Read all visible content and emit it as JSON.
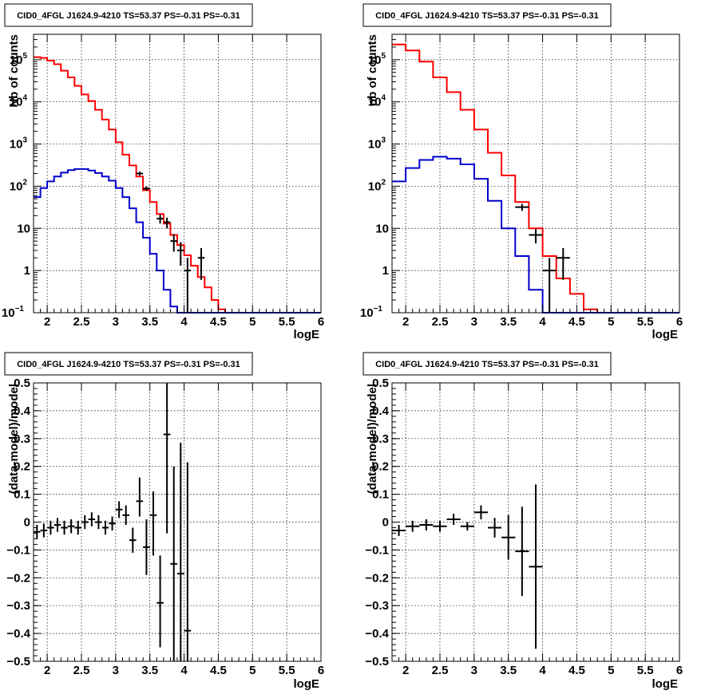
{
  "colors": {
    "data": "#000000",
    "total_model": "#ff0000",
    "source_model": "#0000cc",
    "grid": "#000000"
  },
  "chart_data": [
    {
      "id": "counts-fine",
      "type": "line",
      "title": "CID0_4FGL J1624.9-4210 TS=53.37 PS=-0.31 PS=-0.31",
      "xlabel": "logE",
      "ylabel": "Nb of counts",
      "xlim": [
        1.8,
        6.0
      ],
      "ylim": [
        0.1,
        400000
      ],
      "yscale": "log",
      "grid": true,
      "xticks": [
        "2",
        "2.5",
        "3",
        "3.5",
        "4",
        "4.5",
        "5",
        "5.5",
        "6"
      ],
      "yticks": [
        {
          "value": 0.1,
          "base": "10",
          "exp": "−1"
        },
        {
          "value": 1,
          "base": "1",
          "exp": ""
        },
        {
          "value": 10,
          "base": "10",
          "exp": ""
        },
        {
          "value": 100,
          "base": "10",
          "exp": "2"
        },
        {
          "value": 1000,
          "base": "10",
          "exp": "3"
        },
        {
          "value": 10000,
          "base": "10",
          "exp": "4"
        },
        {
          "value": 100000,
          "base": "10",
          "exp": "5"
        }
      ],
      "bin_edges": [
        1.8,
        1.9,
        2.0,
        2.1,
        2.2,
        2.3,
        2.4,
        2.5,
        2.6,
        2.7,
        2.8,
        2.9,
        3.0,
        3.1,
        3.2,
        3.3,
        3.4,
        3.5,
        3.6,
        3.7,
        3.8,
        3.9,
        4.0,
        4.1,
        4.2,
        4.3,
        4.4,
        4.5,
        4.6,
        4.7,
        4.8,
        4.9,
        5.0,
        5.1,
        5.2,
        5.3,
        5.4,
        5.5,
        5.6,
        5.7,
        5.8,
        5.9,
        6.0
      ],
      "series": [
        {
          "name": "total model",
          "color": "#ff0000",
          "values": [
            115000,
            110000,
            95000,
            78000,
            55000,
            38000,
            24000,
            15000,
            10500,
            6500,
            3800,
            2200,
            1100,
            560,
            310,
            170,
            80,
            42,
            22,
            13,
            7,
            4,
            2.3,
            1.3,
            0.7,
            0.4,
            0.2,
            0.12,
            0.08,
            0.08,
            0.08,
            0.08,
            0.08,
            0.08,
            0.08,
            0.08,
            0.08,
            0.08,
            0.08,
            0.08,
            0.08,
            0.08
          ]
        },
        {
          "name": "source model",
          "color": "#0000cc",
          "values": [
            55,
            90,
            130,
            170,
            210,
            240,
            255,
            255,
            235,
            205,
            170,
            135,
            90,
            55,
            30,
            14,
            6,
            2.5,
            1.0,
            0.35,
            0.14,
            0.08,
            0.08,
            0.08,
            0.08,
            0.08,
            0.08,
            0.08,
            0.08,
            0.08,
            0.08,
            0.08,
            0.08,
            0.08,
            0.08,
            0.08,
            0.08,
            0.08,
            0.08,
            0.08,
            0.08,
            0.08
          ]
        }
      ],
      "points": [
        {
          "x": 3.35,
          "y": 200,
          "xerr": 0.05,
          "lo": 180,
          "hi": 222
        },
        {
          "x": 3.45,
          "y": 88,
          "xerr": 0.05,
          "lo": 78,
          "hi": 98
        },
        {
          "x": 3.65,
          "y": 17,
          "xerr": 0.05,
          "lo": 13,
          "hi": 21
        },
        {
          "x": 3.75,
          "y": 14,
          "xerr": 0.05,
          "lo": 10,
          "hi": 18
        },
        {
          "x": 3.85,
          "y": 5,
          "xerr": 0.05,
          "lo": 2.8,
          "hi": 7.2
        },
        {
          "x": 3.95,
          "y": 3,
          "xerr": 0.05,
          "lo": 1.3,
          "hi": 4.7
        },
        {
          "x": 4.05,
          "y": 1,
          "xerr": 0.05,
          "lo": 0.08,
          "hi": 2.0
        },
        {
          "x": 4.25,
          "y": 2,
          "xerr": 0.05,
          "lo": 0.6,
          "hi": 3.4
        }
      ]
    },
    {
      "id": "counts-coarse",
      "type": "line",
      "title": "CID0_4FGL J1624.9-4210 TS=53.37 PS=-0.31 PS=-0.31",
      "xlabel": "logE",
      "ylabel": "nb of counts",
      "xlim": [
        1.8,
        6.0
      ],
      "ylim": [
        0.1,
        400000
      ],
      "yscale": "log",
      "grid": true,
      "xticks": [
        "2",
        "2.5",
        "3",
        "3.5",
        "4",
        "4.5",
        "5",
        "5.5",
        "6"
      ],
      "yticks": [
        {
          "value": 0.1,
          "base": "10",
          "exp": "−1"
        },
        {
          "value": 1,
          "base": "1",
          "exp": ""
        },
        {
          "value": 10,
          "base": "10",
          "exp": ""
        },
        {
          "value": 100,
          "base": "10",
          "exp": "2"
        },
        {
          "value": 1000,
          "base": "10",
          "exp": "3"
        },
        {
          "value": 10000,
          "base": "10",
          "exp": "4"
        },
        {
          "value": 100000,
          "base": "10",
          "exp": "5"
        }
      ],
      "bin_edges": [
        1.8,
        2.0,
        2.2,
        2.4,
        2.6,
        2.8,
        3.0,
        3.2,
        3.4,
        3.6,
        3.8,
        4.0,
        4.2,
        4.4,
        4.6,
        4.8,
        5.0,
        5.2,
        5.4,
        5.6,
        5.8,
        6.0
      ],
      "series": [
        {
          "name": "total model",
          "color": "#ff0000",
          "values": [
            230000,
            165000,
            90000,
            38000,
            17000,
            6500,
            2200,
            620,
            180,
            42,
            10,
            2.2,
            0.65,
            0.28,
            0.12,
            0.08,
            0.08,
            0.08,
            0.08,
            0.08,
            0.08
          ]
        },
        {
          "name": "source model",
          "color": "#0000cc",
          "values": [
            130,
            270,
            420,
            500,
            450,
            330,
            150,
            45,
            10,
            2.2,
            0.35,
            0.08,
            0.08,
            0.08,
            0.08,
            0.08,
            0.08,
            0.08,
            0.08,
            0.08,
            0.08
          ]
        }
      ],
      "points": [
        {
          "x": 3.7,
          "y": 32,
          "xerr": 0.1,
          "lo": 26,
          "hi": 38
        },
        {
          "x": 3.9,
          "y": 7,
          "xerr": 0.1,
          "lo": 4.4,
          "hi": 9.6
        },
        {
          "x": 4.1,
          "y": 1,
          "xerr": 0.1,
          "lo": 0.08,
          "hi": 2.0
        },
        {
          "x": 4.3,
          "y": 2,
          "xerr": 0.1,
          "lo": 0.6,
          "hi": 3.4
        }
      ]
    },
    {
      "id": "residual-fine",
      "type": "scatter",
      "title": "CID0_4FGL J1624.9-4210 TS=53.37 PS=-0.31 PS=-0.31",
      "xlabel": "logE",
      "ylabel": "(data-model)/model",
      "xlim": [
        1.8,
        6.0
      ],
      "ylim": [
        -0.5,
        0.5
      ],
      "yscale": "linear",
      "grid": true,
      "xticks": [
        "2",
        "2.5",
        "3",
        "3.5",
        "4",
        "4.5",
        "5",
        "5.5",
        "6"
      ],
      "yticks": [
        "−0.5",
        "−0.4",
        "−0.3",
        "−0.2",
        "−0.1",
        "0",
        "0.1",
        "0.2",
        "0.3",
        "0.4",
        "0.5"
      ],
      "points": [
        {
          "x": 1.85,
          "y": -0.035,
          "xerr": 0.05,
          "lo": -0.06,
          "hi": -0.01
        },
        {
          "x": 1.95,
          "y": -0.03,
          "xerr": 0.05,
          "lo": -0.055,
          "hi": -0.005
        },
        {
          "x": 2.05,
          "y": -0.02,
          "xerr": 0.05,
          "lo": -0.045,
          "hi": 0.005
        },
        {
          "x": 2.15,
          "y": -0.01,
          "xerr": 0.05,
          "lo": -0.035,
          "hi": 0.015
        },
        {
          "x": 2.25,
          "y": -0.02,
          "xerr": 0.05,
          "lo": -0.045,
          "hi": 0.005
        },
        {
          "x": 2.35,
          "y": -0.015,
          "xerr": 0.05,
          "lo": -0.04,
          "hi": 0.01
        },
        {
          "x": 2.45,
          "y": -0.02,
          "xerr": 0.05,
          "lo": -0.045,
          "hi": 0.005
        },
        {
          "x": 2.55,
          "y": 0.0,
          "xerr": 0.05,
          "lo": -0.025,
          "hi": 0.025
        },
        {
          "x": 2.65,
          "y": 0.01,
          "xerr": 0.05,
          "lo": -0.015,
          "hi": 0.035
        },
        {
          "x": 2.75,
          "y": 0.0,
          "xerr": 0.05,
          "lo": -0.025,
          "hi": 0.025
        },
        {
          "x": 2.85,
          "y": -0.02,
          "xerr": 0.05,
          "lo": -0.045,
          "hi": 0.005
        },
        {
          "x": 2.95,
          "y": -0.005,
          "xerr": 0.05,
          "lo": -0.03,
          "hi": 0.02
        },
        {
          "x": 3.05,
          "y": 0.045,
          "xerr": 0.05,
          "lo": 0.015,
          "hi": 0.075
        },
        {
          "x": 3.15,
          "y": 0.025,
          "xerr": 0.05,
          "lo": -0.01,
          "hi": 0.06
        },
        {
          "x": 3.25,
          "y": -0.065,
          "xerr": 0.05,
          "lo": -0.11,
          "hi": -0.02
        },
        {
          "x": 3.35,
          "y": 0.075,
          "xerr": 0.05,
          "lo": 0.02,
          "hi": 0.16
        },
        {
          "x": 3.45,
          "y": -0.09,
          "xerr": 0.05,
          "lo": -0.19,
          "hi": 0.01
        },
        {
          "x": 3.55,
          "y": 0.025,
          "xerr": 0.05,
          "lo": -0.12,
          "hi": 0.11
        },
        {
          "x": 3.65,
          "y": -0.29,
          "xerr": 0.05,
          "lo": -0.45,
          "hi": -0.12
        },
        {
          "x": 3.75,
          "y": 0.315,
          "xerr": 0.05,
          "lo": -0.04,
          "hi": 0.5
        },
        {
          "x": 3.85,
          "y": -0.15,
          "xerr": 0.05,
          "lo": -0.5,
          "hi": 0.2
        },
        {
          "x": 3.95,
          "y": -0.185,
          "xerr": 0.05,
          "lo": -0.5,
          "hi": 0.285
        },
        {
          "x": 4.05,
          "y": -0.39,
          "xerr": 0.05,
          "lo": -0.5,
          "hi": 0.215
        }
      ]
    },
    {
      "id": "residual-coarse",
      "type": "scatter",
      "title": "CID0_4FGL J1624.9-4210 TS=53.37 PS=-0.31 PS=-0.31",
      "xlabel": "logE",
      "ylabel": "(data-model)/model",
      "xlim": [
        1.8,
        6.0
      ],
      "ylim": [
        -0.5,
        0.5
      ],
      "yscale": "linear",
      "grid": true,
      "xticks": [
        "2",
        "2.5",
        "3",
        "3.5",
        "4",
        "4.5",
        "5",
        "5.5",
        "6"
      ],
      "yticks": [
        "−0.5",
        "−0.4",
        "−0.3",
        "−0.2",
        "−0.1",
        "0",
        "0.1",
        "0.2",
        "0.3",
        "0.4",
        "0.5"
      ],
      "points": [
        {
          "x": 1.9,
          "y": -0.03,
          "xerr": 0.1,
          "lo": -0.05,
          "hi": -0.01
        },
        {
          "x": 2.1,
          "y": -0.015,
          "xerr": 0.1,
          "lo": -0.035,
          "hi": 0.005
        },
        {
          "x": 2.3,
          "y": -0.01,
          "xerr": 0.1,
          "lo": -0.03,
          "hi": 0.01
        },
        {
          "x": 2.5,
          "y": -0.015,
          "xerr": 0.1,
          "lo": -0.035,
          "hi": 0.005
        },
        {
          "x": 2.7,
          "y": 0.01,
          "xerr": 0.1,
          "lo": -0.01,
          "hi": 0.03
        },
        {
          "x": 2.9,
          "y": -0.015,
          "xerr": 0.1,
          "lo": -0.03,
          "hi": 0.0
        },
        {
          "x": 3.1,
          "y": 0.035,
          "xerr": 0.1,
          "lo": 0.01,
          "hi": 0.06
        },
        {
          "x": 3.3,
          "y": -0.02,
          "xerr": 0.1,
          "lo": -0.055,
          "hi": 0.015
        },
        {
          "x": 3.5,
          "y": -0.055,
          "xerr": 0.1,
          "lo": -0.135,
          "hi": 0.025
        },
        {
          "x": 3.7,
          "y": -0.105,
          "xerr": 0.1,
          "lo": -0.265,
          "hi": 0.055
        },
        {
          "x": 3.9,
          "y": -0.16,
          "xerr": 0.1,
          "lo": -0.455,
          "hi": 0.135
        }
      ]
    }
  ]
}
